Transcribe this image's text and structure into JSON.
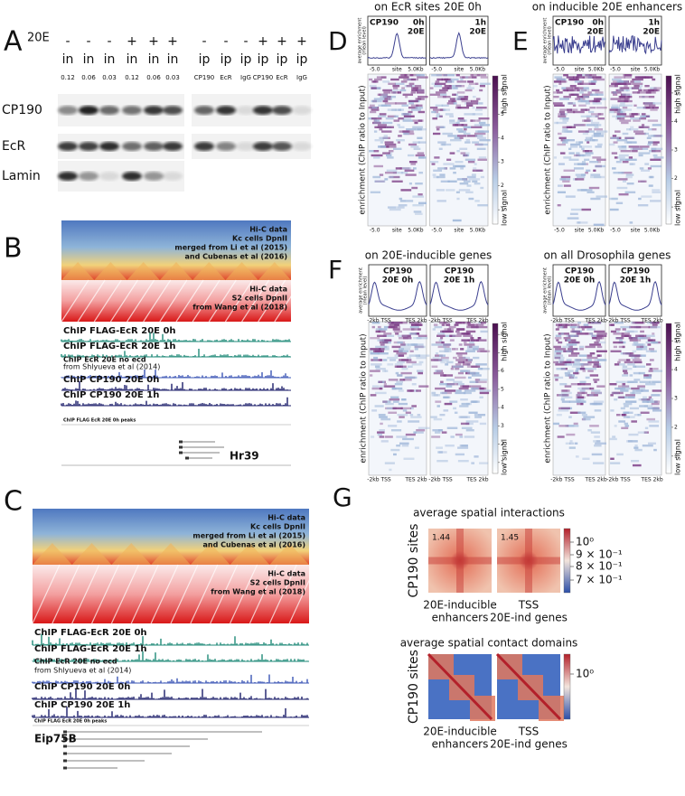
{
  "panel_a": {
    "label": "A",
    "treatment": "20E",
    "signs": [
      "-",
      "-",
      "-",
      "+",
      "+",
      "+",
      "-",
      "-",
      "-",
      "+",
      "+",
      "+"
    ],
    "lanes": [
      "in",
      "in",
      "in",
      "in",
      "in",
      "in",
      "ip",
      "ip",
      "ip",
      "ip",
      "ip",
      "ip"
    ],
    "amounts": [
      "0.12",
      "0.06",
      "0.03",
      "0.12",
      "0.06",
      "0.03",
      "CP190",
      "EcR",
      "IgG",
      "CP190",
      "EcR",
      "IgG"
    ],
    "blots": [
      "CP190",
      "EcR",
      "Lamin"
    ]
  },
  "panel_b": {
    "label": "B",
    "hic_kc": [
      "Hi-C data",
      "Kc cells DpnII",
      "merged from Li et al (2015)",
      "and Cubenas et al (2016)"
    ],
    "hic_s2": [
      "Hi-C data",
      "S2 cells DpnII",
      "from Wang et al (2018)"
    ],
    "tracks": [
      "ChIP FLAG-EcR 20E 0h",
      "ChIP FLAG-EcR 20E 1h",
      "ChIP EcR 20E no ecd",
      "from Shlyueva et al (2014)",
      "ChIP CP190 20E 0h",
      "ChIP CP190 20E 1h"
    ],
    "peaks": "ChIP FLAG EcR 20E 0h peaks",
    "gene": "Hr39"
  },
  "panel_c": {
    "label": "C",
    "hic_kc": [
      "Hi-C data",
      "Kc cells DpnII",
      "merged from Li et al (2015)",
      "and Cubenas et al (2016)"
    ],
    "hic_s2": [
      "Hi-C data",
      "S2 cells DpnII",
      "from Wang et al (2018)"
    ],
    "tracks": [
      "ChIP FLAG-EcR 20E 0h",
      "ChIP FLAG-EcR 20E 1h",
      "ChIP EcR 20E no ecd",
      "from Shlyueva et al (2014)",
      "ChIP CP190 20E 0h",
      "ChIP CP190 20E 1h"
    ],
    "peaks": "ChIP FLAG EcR 20E 0h peaks",
    "gene": "Eip75B"
  },
  "panel_d": {
    "label": "D",
    "title": "on EcR sites 20E 0h",
    "profiles": [
      {
        "name": "CP190",
        "time": "0h",
        "treatment": "20E"
      },
      {
        "time": "1h",
        "treatment": "20E"
      }
    ],
    "profile_ylabel": [
      "average enrichment",
      "(mean level)"
    ],
    "x_labels": [
      "-5.0",
      "site",
      "5.0Kb"
    ],
    "heat_ylabel": "enrichment (ChIP ratio to Input)",
    "colorbar": {
      "ticks": [
        "1",
        "2",
        "3",
        "4",
        "5",
        "6"
      ],
      "high": "high signal",
      "low": "low signal"
    }
  },
  "panel_e": {
    "label": "E",
    "title": "on inducible 20E enhancers",
    "profiles": [
      {
        "name": "CP190",
        "time": "0h",
        "treatment": "20E"
      },
      {
        "time": "1h",
        "treatment": "20E"
      }
    ],
    "profile_ylabel": [
      "average enrichment",
      "(mean level)"
    ],
    "x_labels": [
      "-5.0",
      "site",
      "5.0Kb"
    ],
    "heat_ylabel": "enrichment (ChIP ratio to Input)",
    "colorbar": {
      "ticks": [
        "1",
        "2",
        "3",
        "4",
        "5"
      ],
      "high": "high signal",
      "low": "low signal"
    }
  },
  "panel_f": {
    "label": "F",
    "left": {
      "title": "on 20E-inducible genes",
      "profiles": [
        {
          "name": "CP190",
          "condition": "20E 0h"
        },
        {
          "name": "CP190",
          "condition": "20E 1h"
        }
      ],
      "profile_ylabel": [
        "average enrichment",
        "(mean level)"
      ],
      "x_labels": [
        "-2kb TSS",
        "TES 2kb"
      ],
      "heat_ylabel": "enrichment (ChIP ratio to Input)",
      "colorbar": {
        "ticks": [
          "1",
          "2",
          "3",
          "4",
          "5",
          "6",
          "7",
          "8"
        ],
        "high": "high signal",
        "low": "low signal"
      }
    },
    "right": {
      "title": "on all Drosophila genes",
      "profiles": [
        {
          "name": "CP190",
          "condition": "20E 0h"
        },
        {
          "name": "CP190",
          "condition": "20E 1h"
        }
      ],
      "profile_ylabel": [
        "average enrichment",
        "(mean level)"
      ],
      "x_labels": [
        "-2kb TSS",
        "TES 2kb"
      ],
      "heat_ylabel": "enrichment (ChIP ratio to Input)",
      "colorbar": {
        "ticks": [
          "1",
          "2",
          "3",
          "4",
          "5"
        ],
        "high": "high signal",
        "low": "low signal"
      }
    }
  },
  "panel_g": {
    "label": "G",
    "interactions": {
      "title": "average spatial interactions",
      "ylabel": "CP190 sites",
      "values": [
        1.44,
        1.45
      ],
      "colorbar": [
        "10⁰",
        "9 × 10⁻¹",
        "8 × 10⁻¹",
        "7 × 10⁻¹"
      ],
      "xlabels": [
        [
          "20E-inducible",
          "enhancers"
        ],
        [
          "TSS",
          "20E-ind genes"
        ]
      ]
    },
    "domains": {
      "title": "average spatial contact domains",
      "ylabel": "CP190 sites",
      "colorbar": [
        "10⁰"
      ],
      "xlabels": [
        [
          "20E-inducible",
          "enhancers"
        ],
        [
          "TSS",
          "20E-ind genes"
        ]
      ]
    }
  }
}
